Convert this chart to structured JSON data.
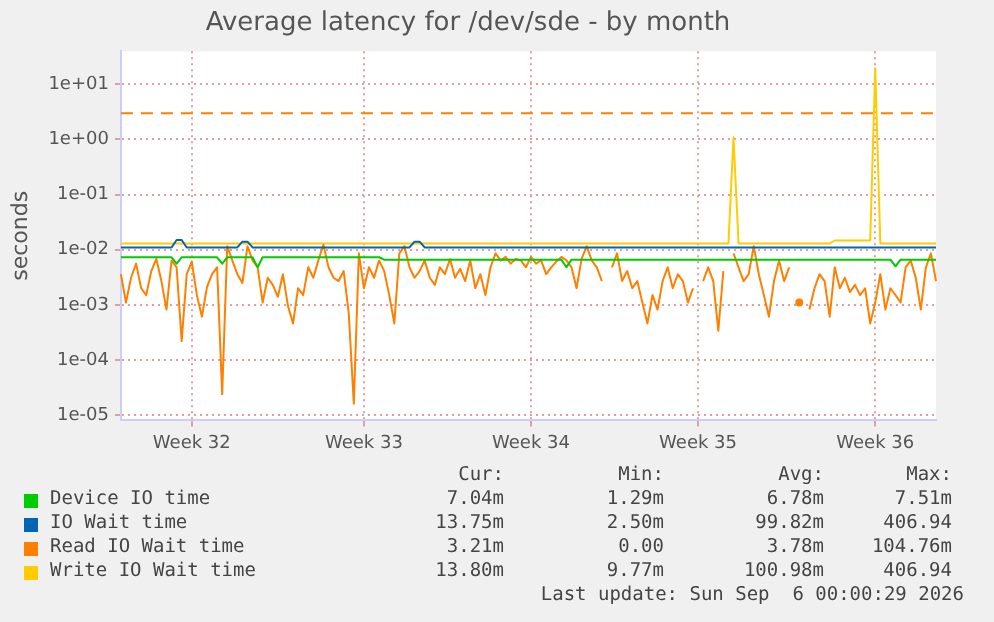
{
  "chart_data": {
    "type": "line",
    "title": "Average latency for /dev/sde - by month",
    "ylabel": "seconds",
    "log": "y",
    "grid": true,
    "legend": "bottom",
    "marker": "none",
    "line_style": "solid",
    "categories": [
      null,
      null,
      null,
      null,
      null,
      null,
      null,
      null,
      null,
      null,
      null,
      null,
      null,
      null,
      "Week 32",
      null,
      null,
      null,
      null,
      null,
      null,
      null,
      null,
      null,
      null,
      null,
      null,
      null,
      null,
      null,
      null,
      null,
      null,
      null,
      null,
      null,
      null,
      null,
      null,
      null,
      null,
      null,
      null,
      null,
      null,
      null,
      null,
      null,
      "Week 33",
      null,
      null,
      null,
      null,
      null,
      null,
      null,
      null,
      null,
      null,
      null,
      null,
      null,
      null,
      null,
      null,
      null,
      null,
      null,
      null,
      null,
      null,
      null,
      null,
      null,
      null,
      null,
      null,
      null,
      null,
      null,
      null,
      "Week 34",
      null,
      null,
      null,
      null,
      null,
      null,
      null,
      null,
      null,
      null,
      null,
      null,
      null,
      null,
      null,
      null,
      null,
      null,
      null,
      null,
      null,
      null,
      null,
      null,
      null,
      null,
      null,
      null,
      null,
      null,
      null,
      null,
      "Week 35",
      null,
      null,
      null,
      null,
      null,
      null,
      null,
      null,
      null,
      null,
      null,
      null,
      null,
      null,
      null,
      null,
      null,
      null,
      null,
      null,
      null,
      null,
      null,
      null,
      null,
      null,
      null,
      null,
      null,
      null,
      null,
      null,
      null,
      null,
      "Week 36",
      null,
      null,
      null,
      null,
      null,
      null,
      null,
      null,
      null,
      null,
      null,
      null
    ],
    "ylim": [
      8e-06,
      40
    ],
    "yticks": [
      {
        "value": 1e-05,
        "label": "1e-05"
      },
      {
        "value": 0.0001,
        "label": "1e-04"
      },
      {
        "value": 0.001,
        "label": "1e-03"
      },
      {
        "value": 0.01,
        "label": "1e-02"
      },
      {
        "value": 0.1,
        "label": "1e-01"
      },
      {
        "value": 1,
        "label": "1e+00"
      },
      {
        "value": 10,
        "label": "1e+01"
      }
    ],
    "ref_lines": [
      {
        "axis": "y",
        "value": 3,
        "color": "#ff7f00",
        "line_style": "dashed"
      }
    ],
    "series": [
      {
        "name": "Device IO time",
        "color": "#00cc00",
        "values": [
          0.0073,
          0.0073,
          0.0073,
          0.0073,
          0.0073,
          0.0073,
          0.0073,
          0.0073,
          0.0073,
          0.0073,
          0.0073,
          0.0056,
          0.0073,
          0.0073,
          0.0073,
          0.0073,
          0.0073,
          0.0073,
          0.0073,
          0.0073,
          0.0056,
          0.0073,
          0.0073,
          0.0073,
          0.0073,
          0.0073,
          0.0073,
          0.0048,
          0.0073,
          0.0073,
          0.0073,
          0.0073,
          0.0073,
          0.0073,
          0.0073,
          0.0073,
          0.0073,
          0.0073,
          0.0073,
          0.0073,
          0.0073,
          0.0073,
          0.0073,
          0.0073,
          0.0073,
          0.0073,
          0.0073,
          0.0073,
          0.0073,
          0.0073,
          0.0073,
          0.0073,
          0.0066,
          0.0066,
          0.0066,
          0.0066,
          0.0066,
          0.0066,
          0.0066,
          0.0066,
          0.0066,
          0.0066,
          0.0066,
          0.0066,
          0.0066,
          0.0066,
          0.0066,
          0.0066,
          0.0066,
          0.0066,
          0.0066,
          0.0066,
          0.0066,
          0.0066,
          0.0066,
          0.0066,
          0.0066,
          0.0066,
          0.0066,
          0.0066,
          0.0066,
          0.0066,
          0.0066,
          0.0066,
          0.0066,
          0.0066,
          0.0066,
          0.0066,
          0.0048,
          0.0066,
          0.0066,
          0.0066,
          0.0066,
          0.0066,
          0.0066,
          0.0066,
          0.0066,
          0.0066,
          0.0066,
          0.0066,
          0.0066,
          0.0066,
          0.0066,
          0.0066,
          0.0066,
          0.0066,
          0.0066,
          0.0066,
          0.0066,
          0.0066,
          0.0066,
          0.0066,
          0.0066,
          0.0066,
          0.0066,
          0.0066,
          0.0066,
          0.0066,
          0.0066,
          0.0066,
          0.0066,
          0.0066,
          0.0066,
          0.0066,
          0.0066,
          0.0066,
          0.0066,
          0.0066,
          0.0066,
          0.0066,
          0.0066,
          0.0066,
          0.0066,
          0.0066,
          0.0066,
          0.0066,
          0.0066,
          0.0066,
          0.0066,
          0.0066,
          0.0066,
          0.0066,
          0.0066,
          0.0066,
          0.0066,
          0.0066,
          0.0066,
          0.0066,
          0.0066,
          0.0066,
          0.0066,
          0.0066,
          0.0066,
          0.005,
          0.0066,
          0.0066,
          0.0066,
          0.0066,
          0.0066,
          0.0066,
          0.0066,
          0.0066
        ]
      },
      {
        "name": "IO Wait time",
        "color": "#0066b3",
        "values": [
          0.011,
          0.011,
          0.011,
          0.011,
          0.011,
          0.011,
          0.011,
          0.011,
          0.011,
          0.011,
          0.011,
          0.015,
          0.015,
          0.011,
          0.011,
          0.011,
          0.011,
          0.011,
          0.011,
          0.011,
          0.011,
          0.011,
          0.011,
          0.011,
          0.014,
          0.014,
          0.011,
          0.011,
          0.011,
          0.011,
          0.011,
          0.011,
          0.011,
          0.011,
          0.011,
          0.011,
          0.011,
          0.011,
          0.011,
          0.011,
          0.011,
          0.011,
          0.011,
          0.011,
          0.011,
          0.011,
          0.011,
          0.011,
          0.011,
          0.011,
          0.011,
          0.011,
          0.011,
          0.011,
          0.011,
          0.011,
          0.011,
          0.011,
          0.014,
          0.014,
          0.011,
          0.011,
          0.011,
          0.011,
          0.011,
          0.011,
          0.011,
          0.011,
          0.011,
          0.011,
          0.011,
          0.011,
          0.011,
          0.011,
          0.011,
          0.011,
          0.011,
          0.011,
          0.011,
          0.011,
          0.011,
          0.011,
          0.011,
          0.011,
          0.011,
          0.011,
          0.011,
          0.011,
          0.011,
          0.011,
          0.011,
          0.011,
          0.011,
          0.011,
          0.011,
          0.011,
          0.011,
          0.011,
          0.011,
          0.011,
          0.011,
          0.011,
          0.011,
          0.011,
          0.011,
          0.011,
          0.011,
          0.011,
          0.011,
          0.011,
          0.011,
          0.011,
          0.011,
          0.011,
          0.011,
          0.011,
          0.011,
          0.011,
          0.011,
          0.011,
          0.011,
          0.011,
          0.011,
          0.011,
          0.011,
          0.011,
          0.011,
          0.011,
          0.011,
          0.011,
          0.011,
          0.011,
          0.011,
          0.011,
          0.011,
          0.011,
          0.011,
          0.011,
          0.011,
          0.011,
          0.011,
          0.011,
          0.011,
          0.011,
          0.011,
          0.011,
          0.011,
          0.011,
          0.011,
          0.011,
          0.011,
          0.011,
          0.011,
          0.011,
          0.011,
          0.011,
          0.011,
          0.011,
          0.011,
          0.011,
          0.011,
          0.011
        ]
      },
      {
        "name": "Read IO Wait time",
        "color": "#ff8000",
        "values": [
          0.0036,
          0.0011,
          0.0031,
          0.0056,
          0.002,
          0.0015,
          0.0041,
          0.0068,
          0.0027,
          0.00082,
          0.0064,
          0.0048,
          0.00022,
          0.0036,
          0.0061,
          0.0015,
          0.00061,
          0.0021,
          0.0036,
          0.0048,
          2.4e-05,
          0.0116,
          0.0064,
          0.0036,
          0.0025,
          0.0116,
          0.0064,
          0.0048,
          0.0011,
          0.0031,
          0.0023,
          0.0014,
          0.0036,
          0.00095,
          0.00046,
          0.002,
          0.0015,
          0.0048,
          0.0031,
          0.0064,
          0.0123,
          0.0048,
          0.0031,
          0.0027,
          0.0041,
          0.00071,
          1.6e-05,
          0.0086,
          0.002,
          0.0048,
          0.0031,
          0.0064,
          0.0041,
          0.0015,
          0.00046,
          0.0086,
          0.0116,
          0.0048,
          0.0031,
          0.0041,
          0.0064,
          0.0031,
          0.0023,
          0.0048,
          0.0036,
          0.0068,
          0.0031,
          0.0045,
          0.0027,
          0.0064,
          0.002,
          0.0036,
          0.0015,
          0.0048,
          0.0086,
          0.0064,
          0.0074,
          0.0056,
          0.0068,
          0.0064,
          0.0048,
          0.0074,
          0.0056,
          0.0064,
          0.0036,
          0.0048,
          0.0061,
          0.0074,
          0.0064,
          0.0048,
          0.002,
          0.0068,
          0.0116,
          0.0064,
          0.0048,
          0.0027,
          null,
          0.0048,
          0.0086,
          0.0027,
          0.0041,
          0.002,
          0.0027,
          0.0011,
          0.00046,
          0.0015,
          0.00082,
          0.0027,
          0.0048,
          0.002,
          0.0036,
          0.0027,
          0.0011,
          0.002,
          null,
          0.0027,
          0.0048,
          0.0027,
          0.00034,
          0.0041,
          null,
          0.0086,
          0.0048,
          0.0027,
          0.0036,
          0.0116,
          0.0036,
          0.0015,
          0.00061,
          0.0027,
          0.0064,
          0.0027,
          0.0048,
          null,
          0.0011,
          null,
          0.00082,
          0.002,
          0.0036,
          0.0027,
          0.00061,
          0.0048,
          0.002,
          0.0031,
          0.0017,
          0.0023,
          0.0015,
          0.002,
          0.00046,
          0.0011,
          0.0036,
          0.00082,
          0.002,
          0.0015,
          0.0011,
          0.0048,
          0.0064,
          0.0031,
          0.00082,
          0.0048,
          0.0086,
          0.0027
        ]
      },
      {
        "name": "Write IO Wait time",
        "color": "#ffcc00",
        "values": [
          0.013,
          0.013,
          0.013,
          0.013,
          0.013,
          0.013,
          0.013,
          0.013,
          0.013,
          0.013,
          0.013,
          0.013,
          0.013,
          0.013,
          0.013,
          0.013,
          0.013,
          0.013,
          0.013,
          0.013,
          0.013,
          0.013,
          0.013,
          0.013,
          0.013,
          0.013,
          0.013,
          0.013,
          0.013,
          0.013,
          0.013,
          0.013,
          0.013,
          0.013,
          0.013,
          0.013,
          0.013,
          0.013,
          0.013,
          0.013,
          0.013,
          0.013,
          0.013,
          0.013,
          0.013,
          0.013,
          0.013,
          0.013,
          0.013,
          0.013,
          0.013,
          0.013,
          0.013,
          0.013,
          0.013,
          0.013,
          0.013,
          0.013,
          0.013,
          0.013,
          0.013,
          0.013,
          0.013,
          0.013,
          0.013,
          0.013,
          0.013,
          0.013,
          0.013,
          0.013,
          0.013,
          0.013,
          0.013,
          0.013,
          0.013,
          0.013,
          0.013,
          0.013,
          0.013,
          0.013,
          0.013,
          0.013,
          0.013,
          0.013,
          0.013,
          0.013,
          0.013,
          0.013,
          0.013,
          0.013,
          0.013,
          0.013,
          0.013,
          0.013,
          0.013,
          0.013,
          0.013,
          0.013,
          0.013,
          0.013,
          0.013,
          0.013,
          0.013,
          0.013,
          0.013,
          0.013,
          0.013,
          0.013,
          0.013,
          0.013,
          0.013,
          0.013,
          0.013,
          0.013,
          0.013,
          0.013,
          0.013,
          0.013,
          0.013,
          0.013,
          0.013,
          1.1,
          0.013,
          0.013,
          0.013,
          0.013,
          0.013,
          0.013,
          0.013,
          0.013,
          0.013,
          0.013,
          0.013,
          0.013,
          0.013,
          0.013,
          0.013,
          0.013,
          0.013,
          0.013,
          0.013,
          0.0147,
          0.0147,
          0.0147,
          0.0147,
          0.0147,
          0.0147,
          0.0147,
          0.0147,
          19.7,
          0.013,
          0.013,
          0.013,
          0.013,
          0.013,
          0.013,
          0.013,
          0.013,
          0.013,
          0.013,
          0.013,
          0.013
        ]
      }
    ],
    "annotations": [
      "Cur:",
      "Min:",
      "Avg:",
      "Max:",
      "7.04m",
      "1.29m",
      "6.78m",
      "7.51m",
      "13.75m",
      "2.50m",
      "99.82m",
      "406.94",
      "3.21m",
      "0.00",
      "3.78m",
      "104.76m",
      "13.80m",
      "9.77m",
      "100.98m",
      "406.94",
      "Last update: Sun Sep  6 00:00:29 2026"
    ]
  }
}
